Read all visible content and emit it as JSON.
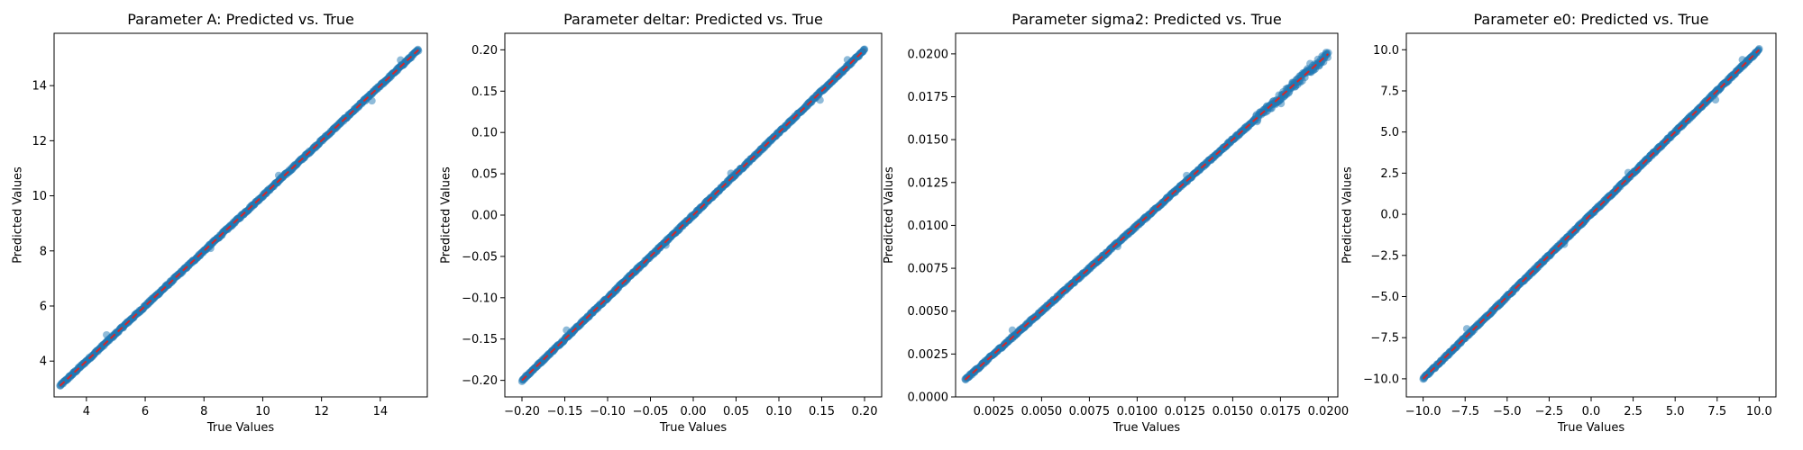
{
  "chart_data": [
    {
      "type": "scatter",
      "title": "Parameter A: Predicted vs. True",
      "xlabel": "True Values",
      "ylabel": "Predicted Values",
      "xlim": [
        2.9,
        15.6
      ],
      "ylim": [
        2.7,
        15.9
      ],
      "xticks": [
        4,
        6,
        8,
        10,
        12,
        14
      ],
      "yticks": [
        4,
        6,
        8,
        10,
        12,
        14
      ],
      "tick_labels_x": [
        "4",
        "6",
        "8",
        "10",
        "12",
        "14"
      ],
      "tick_labels_y": [
        "4",
        "6",
        "8",
        "10",
        "12",
        "14"
      ],
      "data_range": [
        3.1,
        15.3
      ],
      "reference_line": {
        "from": [
          3.1,
          3.1
        ],
        "to": [
          15.3,
          15.3
        ],
        "style": "dashed",
        "color": "#d62728"
      },
      "point_color": "#1f77b4"
    },
    {
      "type": "scatter",
      "title": "Parameter deltar: Predicted vs. True",
      "xlabel": "True Values",
      "ylabel": "Predicted Values",
      "xlim": [
        -0.22,
        0.22
      ],
      "ylim": [
        -0.22,
        0.22
      ],
      "xticks": [
        -0.2,
        -0.15,
        -0.1,
        -0.05,
        0.0,
        0.05,
        0.1,
        0.15,
        0.2
      ],
      "yticks": [
        -0.2,
        -0.15,
        -0.1,
        -0.05,
        0.0,
        0.05,
        0.1,
        0.15,
        0.2
      ],
      "tick_labels_x": [
        "−0.20",
        "−0.15",
        "−0.10",
        "−0.05",
        "0.00",
        "0.05",
        "0.10",
        "0.15",
        "0.20"
      ],
      "tick_labels_y": [
        "−0.20",
        "−0.15",
        "−0.10",
        "−0.05",
        "0.00",
        "0.05",
        "0.10",
        "0.15",
        "0.20"
      ],
      "data_range": [
        -0.2,
        0.2
      ],
      "reference_line": {
        "from": [
          -0.2,
          -0.2
        ],
        "to": [
          0.2,
          0.2
        ],
        "style": "dashed",
        "color": "#d62728"
      },
      "point_color": "#1f77b4"
    },
    {
      "type": "scatter",
      "title": "Parameter sigma2: Predicted vs. True",
      "xlabel": "True Values",
      "ylabel": "Predicted Values",
      "xlim": [
        0.0005,
        0.0205
      ],
      "ylim": [
        0.0,
        0.0212
      ],
      "xticks": [
        0.0025,
        0.005,
        0.0075,
        0.01,
        0.0125,
        0.015,
        0.0175,
        0.02
      ],
      "yticks": [
        0.0,
        0.0025,
        0.005,
        0.0075,
        0.01,
        0.0125,
        0.015,
        0.0175,
        0.02
      ],
      "tick_labels_x": [
        "0.0025",
        "0.0050",
        "0.0075",
        "0.0100",
        "0.0125",
        "0.0150",
        "0.0175",
        "0.0200"
      ],
      "tick_labels_y": [
        "0.0000",
        "0.0025",
        "0.0050",
        "0.0075",
        "0.0100",
        "0.0125",
        "0.0150",
        "0.0175",
        "0.0200"
      ],
      "data_range": [
        0.001,
        0.02
      ],
      "reference_line": {
        "from": [
          0.001,
          0.001
        ],
        "to": [
          0.02,
          0.02
        ],
        "style": "dashed",
        "color": "#d62728"
      },
      "point_color": "#1f77b4"
    },
    {
      "type": "scatter",
      "title": "Parameter e0: Predicted vs. True",
      "xlabel": "True Values",
      "ylabel": "Predicted Values",
      "xlim": [
        -11.0,
        11.0
      ],
      "ylim": [
        -11.1,
        11.0
      ],
      "xticks": [
        -10,
        -7.5,
        -5,
        -2.5,
        0,
        2.5,
        5,
        7.5,
        10
      ],
      "yticks": [
        -10,
        -7.5,
        -5,
        -2.5,
        0,
        2.5,
        5,
        7.5,
        10
      ],
      "tick_labels_x": [
        "−10.0",
        "−7.5",
        "−5.0",
        "−2.5",
        "0.0",
        "2.5",
        "5.0",
        "7.5",
        "10.0"
      ],
      "tick_labels_y": [
        "−10.0",
        "−7.5",
        "−5.0",
        "−2.5",
        "0.0",
        "2.5",
        "5.0",
        "7.5",
        "10.0"
      ],
      "data_range": [
        -10,
        10
      ],
      "reference_line": {
        "from": [
          -10,
          -10
        ],
        "to": [
          10,
          10
        ],
        "style": "dashed",
        "color": "#d62728"
      },
      "point_color": "#1f77b4"
    }
  ]
}
